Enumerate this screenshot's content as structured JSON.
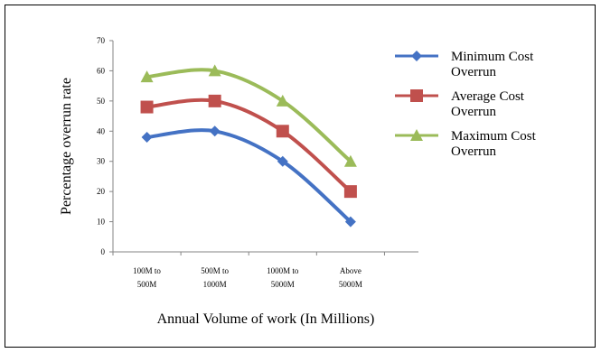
{
  "chart_data": {
    "type": "line",
    "title": "",
    "xlabel": "Annual Volume  of work (In Millions)",
    "ylabel": "Percentage overrun rate",
    "categories": [
      [
        "100M to",
        "500M"
      ],
      [
        "500M to",
        "1000M"
      ],
      [
        "1000M to",
        "5000M"
      ],
      [
        "Above",
        "5000M"
      ]
    ],
    "ylim": [
      0,
      70
    ],
    "yticks": [
      0,
      10,
      20,
      30,
      40,
      50,
      60,
      70
    ],
    "grid": false,
    "legend_position": "right",
    "series": [
      {
        "name": [
          "Minimum Cost",
          "Overrun"
        ],
        "values": [
          38,
          40,
          30,
          10
        ],
        "color": "#4472C4",
        "marker": "diamond"
      },
      {
        "name": [
          "Average Cost",
          "Overrun"
        ],
        "values": [
          48,
          50,
          40,
          20
        ],
        "color": "#C0504D",
        "marker": "square"
      },
      {
        "name": [
          "Maximum Cost",
          "Overrun"
        ],
        "values": [
          58,
          60,
          50,
          30
        ],
        "color": "#9BBB59",
        "marker": "triangle"
      }
    ]
  }
}
